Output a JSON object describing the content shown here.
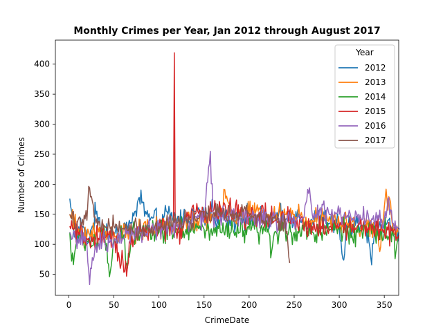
{
  "chart_data": {
    "type": "line",
    "title": "Monthly Crimes per Year, Jan 2012 through August 2017",
    "xlabel": "CrimeDate",
    "ylabel": "Number of Crimes",
    "xlim": [
      -15,
      366
    ],
    "ylim": [
      15,
      440
    ],
    "xticks": [
      0,
      50,
      100,
      150,
      200,
      250,
      300,
      350
    ],
    "yticks": [
      50,
      100,
      150,
      200,
      250,
      300,
      350,
      400
    ],
    "grid": false,
    "legend": {
      "title": "Year",
      "placement": "top-right"
    },
    "series": [
      {
        "name": "2012",
        "color": "#1f77b4",
        "x_end": 366,
        "points": [
          [
            1,
            176
          ],
          [
            5,
            130
          ],
          [
            10,
            115
          ],
          [
            15,
            130
          ],
          [
            20,
            100
          ],
          [
            30,
            150
          ],
          [
            40,
            120
          ],
          [
            50,
            115
          ],
          [
            60,
            125
          ],
          [
            70,
            135
          ],
          [
            78,
            178
          ],
          [
            90,
            140
          ],
          [
            100,
            135
          ],
          [
            110,
            150
          ],
          [
            120,
            140
          ],
          [
            130,
            145
          ],
          [
            140,
            155
          ],
          [
            150,
            150
          ],
          [
            160,
            150
          ],
          [
            170,
            145
          ],
          [
            180,
            140
          ],
          [
            190,
            150
          ],
          [
            200,
            145
          ],
          [
            210,
            140
          ],
          [
            220,
            140
          ],
          [
            230,
            145
          ],
          [
            240,
            140
          ],
          [
            250,
            150
          ],
          [
            260,
            140
          ],
          [
            270,
            140
          ],
          [
            280,
            140
          ],
          [
            290,
            135
          ],
          [
            300,
            130
          ],
          [
            304,
            76
          ],
          [
            310,
            130
          ],
          [
            320,
            135
          ],
          [
            330,
            125
          ],
          [
            335,
            78
          ],
          [
            340,
            130
          ],
          [
            350,
            135
          ],
          [
            360,
            125
          ],
          [
            366,
            120
          ]
        ],
        "base": 138,
        "amp": 16
      },
      {
        "name": "2013",
        "color": "#ff7f0e",
        "x_end": 365,
        "points": [
          [
            1,
            150
          ],
          [
            10,
            120
          ],
          [
            20,
            115
          ],
          [
            30,
            120
          ],
          [
            40,
            115
          ],
          [
            50,
            120
          ],
          [
            60,
            120
          ],
          [
            70,
            120
          ],
          [
            80,
            125
          ],
          [
            90,
            120
          ],
          [
            100,
            125
          ],
          [
            110,
            130
          ],
          [
            120,
            130
          ],
          [
            130,
            135
          ],
          [
            140,
            140
          ],
          [
            150,
            140
          ],
          [
            160,
            145
          ],
          [
            170,
            150
          ],
          [
            173,
            191
          ],
          [
            180,
            150
          ],
          [
            190,
            150
          ],
          [
            200,
            150
          ],
          [
            210,
            155
          ],
          [
            220,
            150
          ],
          [
            230,
            150
          ],
          [
            240,
            150
          ],
          [
            250,
            150
          ],
          [
            260,
            145
          ],
          [
            270,
            140
          ],
          [
            280,
            140
          ],
          [
            290,
            140
          ],
          [
            300,
            135
          ],
          [
            310,
            135
          ],
          [
            320,
            130
          ],
          [
            330,
            130
          ],
          [
            340,
            125
          ],
          [
            345,
            88
          ],
          [
            352,
            192
          ],
          [
            360,
            125
          ],
          [
            365,
            120
          ]
        ],
        "base": 135,
        "amp": 15
      },
      {
        "name": "2014",
        "color": "#2ca02c",
        "x_end": 365,
        "points": [
          [
            1,
            120
          ],
          [
            3,
            72
          ],
          [
            10,
            105
          ],
          [
            20,
            105
          ],
          [
            30,
            105
          ],
          [
            40,
            110
          ],
          [
            45,
            46
          ],
          [
            50,
            110
          ],
          [
            60,
            110
          ],
          [
            65,
            60
          ],
          [
            70,
            120
          ],
          [
            80,
            125
          ],
          [
            90,
            125
          ],
          [
            100,
            120
          ],
          [
            110,
            125
          ],
          [
            120,
            125
          ],
          [
            130,
            125
          ],
          [
            140,
            125
          ],
          [
            150,
            125
          ],
          [
            160,
            120
          ],
          [
            170,
            120
          ],
          [
            180,
            120
          ],
          [
            190,
            120
          ],
          [
            200,
            125
          ],
          [
            210,
            120
          ],
          [
            220,
            120
          ],
          [
            225,
            88
          ],
          [
            230,
            120
          ],
          [
            240,
            125
          ],
          [
            250,
            120
          ],
          [
            260,
            125
          ],
          [
            270,
            120
          ],
          [
            280,
            120
          ],
          [
            290,
            125
          ],
          [
            300,
            125
          ],
          [
            310,
            120
          ],
          [
            320,
            120
          ],
          [
            330,
            125
          ],
          [
            340,
            115
          ],
          [
            350,
            120
          ],
          [
            360,
            115
          ],
          [
            362,
            76
          ],
          [
            365,
            110
          ]
        ],
        "base": 120,
        "amp": 16
      },
      {
        "name": "2015",
        "color": "#d62728",
        "x_end": 366,
        "points": [
          [
            1,
            130
          ],
          [
            10,
            115
          ],
          [
            20,
            110
          ],
          [
            30,
            105
          ],
          [
            40,
            110
          ],
          [
            50,
            110
          ],
          [
            62,
            55
          ],
          [
            70,
            115
          ],
          [
            80,
            115
          ],
          [
            90,
            120
          ],
          [
            100,
            125
          ],
          [
            110,
            130
          ],
          [
            116,
            130
          ],
          [
            117,
            419
          ],
          [
            118,
            130
          ],
          [
            120,
            110
          ],
          [
            130,
            140
          ],
          [
            140,
            150
          ],
          [
            150,
            155
          ],
          [
            160,
            155
          ],
          [
            170,
            160
          ],
          [
            180,
            155
          ],
          [
            190,
            150
          ],
          [
            200,
            150
          ],
          [
            210,
            145
          ],
          [
            220,
            145
          ],
          [
            230,
            140
          ],
          [
            240,
            140
          ],
          [
            250,
            135
          ],
          [
            260,
            130
          ],
          [
            270,
            130
          ],
          [
            280,
            130
          ],
          [
            290,
            130
          ],
          [
            300,
            130
          ],
          [
            310,
            130
          ],
          [
            320,
            130
          ],
          [
            330,
            130
          ],
          [
            340,
            125
          ],
          [
            350,
            125
          ],
          [
            360,
            120
          ],
          [
            366,
            115
          ]
        ],
        "base": 130,
        "amp": 17
      },
      {
        "name": "2016",
        "color": "#9467bd",
        "x_end": 367,
        "points": [
          [
            1,
            120
          ],
          [
            10,
            110
          ],
          [
            20,
            100
          ],
          [
            23,
            33
          ],
          [
            30,
            100
          ],
          [
            40,
            100
          ],
          [
            50,
            105
          ],
          [
            60,
            110
          ],
          [
            70,
            115
          ],
          [
            80,
            120
          ],
          [
            90,
            125
          ],
          [
            100,
            125
          ],
          [
            110,
            130
          ],
          [
            120,
            135
          ],
          [
            130,
            140
          ],
          [
            140,
            145
          ],
          [
            150,
            145
          ],
          [
            157,
            255
          ],
          [
            160,
            145
          ],
          [
            170,
            145
          ],
          [
            180,
            150
          ],
          [
            190,
            145
          ],
          [
            200,
            145
          ],
          [
            210,
            145
          ],
          [
            220,
            145
          ],
          [
            230,
            140
          ],
          [
            240,
            140
          ],
          [
            250,
            145
          ],
          [
            260,
            145
          ],
          [
            267,
            194
          ],
          [
            270,
            150
          ],
          [
            280,
            150
          ],
          [
            290,
            150
          ],
          [
            300,
            150
          ],
          [
            310,
            145
          ],
          [
            320,
            145
          ],
          [
            330,
            140
          ],
          [
            340,
            140
          ],
          [
            350,
            140
          ],
          [
            355,
            178
          ],
          [
            360,
            135
          ],
          [
            367,
            125
          ]
        ],
        "base": 140,
        "amp": 15
      },
      {
        "name": "2017",
        "color": "#8c564b",
        "x_end": 245,
        "points": [
          [
            1,
            150
          ],
          [
            10,
            140
          ],
          [
            20,
            140
          ],
          [
            23,
            194
          ],
          [
            30,
            135
          ],
          [
            40,
            130
          ],
          [
            50,
            130
          ],
          [
            60,
            125
          ],
          [
            70,
            125
          ],
          [
            80,
            125
          ],
          [
            90,
            125
          ],
          [
            100,
            130
          ],
          [
            110,
            135
          ],
          [
            120,
            135
          ],
          [
            130,
            140
          ],
          [
            140,
            140
          ],
          [
            150,
            145
          ],
          [
            160,
            150
          ],
          [
            170,
            150
          ],
          [
            180,
            150
          ],
          [
            190,
            150
          ],
          [
            200,
            150
          ],
          [
            210,
            145
          ],
          [
            220,
            145
          ],
          [
            230,
            140
          ],
          [
            240,
            135
          ],
          [
            245,
            69
          ]
        ],
        "base": 138,
        "amp": 13
      }
    ]
  }
}
